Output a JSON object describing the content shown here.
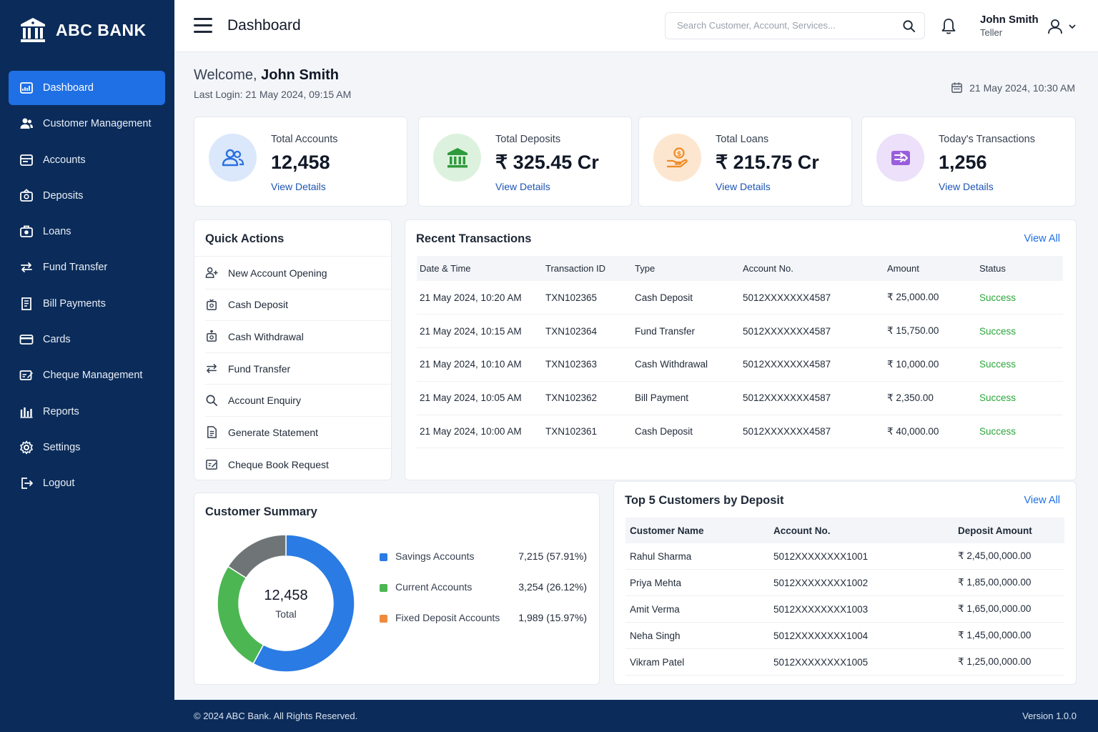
{
  "brand": {
    "name": "ABC BANK"
  },
  "sidebar": {
    "items": [
      {
        "label": "Dashboard",
        "icon": "dashboard-icon",
        "active": true
      },
      {
        "label": "Customer Management",
        "icon": "customer-icon"
      },
      {
        "label": "Accounts",
        "icon": "accounts-icon"
      },
      {
        "label": "Deposits",
        "icon": "deposits-icon"
      },
      {
        "label": "Loans",
        "icon": "loans-icon"
      },
      {
        "label": "Fund Transfer",
        "icon": "transfer-icon"
      },
      {
        "label": "Bill Payments",
        "icon": "bill-icon"
      },
      {
        "label": "Cards",
        "icon": "card-icon"
      },
      {
        "label": "Cheque Management",
        "icon": "cheque-icon"
      },
      {
        "label": "Reports",
        "icon": "reports-icon"
      },
      {
        "label": "Settings",
        "icon": "gear-icon"
      },
      {
        "label": "Logout",
        "icon": "logout-icon"
      }
    ]
  },
  "header": {
    "title": "Dashboard",
    "search_placeholder": "Search Customer, Account, Services...",
    "user_name": "John Smith",
    "user_role": "Teller"
  },
  "welcome": {
    "greeting": "Welcome,",
    "name": "John Smith",
    "last_login": "Last Login: 21 May 2024, 09:15 AM",
    "datetime": "21 May 2024, 10:30 AM"
  },
  "stats": [
    {
      "label": "Total Accounts",
      "value": "12,458",
      "link": "View Details",
      "color": "#dbe8fb",
      "icon_color": "#2a6fe0"
    },
    {
      "label": "Total Deposits",
      "value": "₹ 325.45 Cr",
      "link": "View Details",
      "color": "#dcf2de",
      "icon_color": "#2f9a3c"
    },
    {
      "label": "Total Loans",
      "value": "₹ 215.75 Cr",
      "link": "View Details",
      "color": "#fde6cf",
      "icon_color": "#f08a24"
    },
    {
      "label": "Today's Transactions",
      "value": "1,256",
      "link": "View Details",
      "color": "#ece0fa",
      "icon_color": "#8b46d6"
    }
  ],
  "quick_actions": {
    "title": "Quick Actions",
    "items": [
      {
        "label": "New Account Opening",
        "icon": "add-user-icon"
      },
      {
        "label": "Cash Deposit",
        "icon": "cash-deposit-icon"
      },
      {
        "label": "Cash Withdrawal",
        "icon": "cash-withdrawal-icon"
      },
      {
        "label": "Fund Transfer",
        "icon": "transfer-icon"
      },
      {
        "label": "Account Enquiry",
        "icon": "search-icon"
      },
      {
        "label": "Generate Statement",
        "icon": "document-icon"
      },
      {
        "label": "Cheque Book Request",
        "icon": "cheque-book-icon"
      }
    ]
  },
  "recent_transactions": {
    "title": "Recent Transactions",
    "view_all": "View All",
    "columns": [
      "Date & Time",
      "Transaction ID",
      "Type",
      "Account No.",
      "Amount",
      "Status"
    ],
    "rows": [
      [
        "21 May 2024, 10:20 AM",
        "TXN102365",
        "Cash Deposit",
        "5012XXXXXXX4587",
        "₹ 25,000.00",
        "Success"
      ],
      [
        "21 May 2024, 10:15 AM",
        "TXN102364",
        "Fund Transfer",
        "5012XXXXXXX4587",
        "₹ 15,750.00",
        "Success"
      ],
      [
        "21 May 2024, 10:10 AM",
        "TXN102363",
        "Cash Withdrawal",
        "5012XXXXXXX4587",
        "₹ 10,000.00",
        "Success"
      ],
      [
        "21 May 2024, 10:05 AM",
        "TXN102362",
        "Bill Payment",
        "5012XXXXXXX4587",
        "₹ 2,350.00",
        "Success"
      ],
      [
        "21 May 2024, 10:00 AM",
        "TXN102361",
        "Cash Deposit",
        "5012XXXXXXX4587",
        "₹ 40,000.00",
        "Success"
      ]
    ]
  },
  "customer_summary": {
    "title": "Customer Summary",
    "total": "12,458",
    "total_label": "Total",
    "segments": [
      {
        "name": "Savings Accounts",
        "value": "7,215 (57.91%)",
        "fraction": 0.5791,
        "color": "#2a7be4"
      },
      {
        "name": "Current Accounts",
        "value": "3,254 (26.12%)",
        "fraction": 0.2612,
        "color": "#4cb653"
      },
      {
        "name": "Fixed Deposit Accounts",
        "value": "1,989 (15.97%)",
        "fraction": 0.1597,
        "color": "#f08a3c",
        "chart_color": "#6f7577"
      }
    ]
  },
  "top_customers": {
    "title": "Top 5 Customers by Deposit",
    "view_all": "View All",
    "columns": [
      "Customer Name",
      "Account No.",
      "Deposit Amount"
    ],
    "rows": [
      [
        "Rahul Sharma",
        "5012XXXXXXXX1001",
        "₹ 2,45,00,000.00"
      ],
      [
        "Priya Mehta",
        "5012XXXXXXXX1002",
        "₹ 1,85,00,000.00"
      ],
      [
        "Amit Verma",
        "5012XXXXXXXX1003",
        "₹ 1,65,00,000.00"
      ],
      [
        "Neha Singh",
        "5012XXXXXXXX1004",
        "₹ 1,45,00,000.00"
      ],
      [
        "Vikram Patel",
        "5012XXXXXXXX1005",
        "₹ 1,25,00,000.00"
      ]
    ]
  },
  "footer": {
    "copyright": "© 2024 ABC Bank. All Rights Reserved.",
    "version": "Version 1.0.0"
  }
}
